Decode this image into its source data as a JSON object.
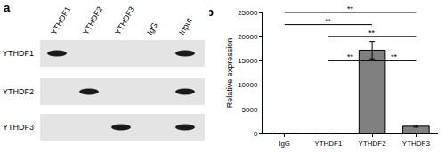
{
  "panel_a": {
    "label": "a",
    "lanes": [
      "YTHDF1",
      "YTHDF2",
      "YTHDF3",
      "IgG",
      "Input"
    ],
    "rows": [
      {
        "label": "YTHDF1",
        "bands": [
          "YTHDF1",
          "Input"
        ]
      },
      {
        "label": "YTHDF2",
        "bands": [
          "YTHDF2",
          "Input"
        ]
      },
      {
        "label": "YTHDF3",
        "bands": [
          "YTHDF3",
          "Input"
        ]
      }
    ]
  },
  "chart_data": {
    "label": "b",
    "type": "bar",
    "y_label": "Relative expression",
    "categories": [
      "IgG",
      "YTHDF1",
      "YTHDF2",
      "YTHDF3"
    ],
    "values": [
      0,
      0,
      17200,
      1500
    ],
    "errors": [
      0,
      0,
      1800,
      200
    ],
    "color": "#808080",
    "ylim": [
      0,
      25000
    ],
    "yticks": [
      0,
      5000,
      10000,
      15000,
      20000,
      25000
    ],
    "grid": false,
    "comparisons": [
      {
        "from": "IgG",
        "to": "YTHDF3",
        "y": 25000,
        "label": "**"
      },
      {
        "from": "IgG",
        "to": "YTHDF2",
        "y": 22500,
        "label": "**"
      },
      {
        "from": "YTHDF1",
        "to": "YTHDF3",
        "y": 20000,
        "label": "**"
      },
      {
        "from": "YTHDF1",
        "to": "YTHDF2",
        "y": 15000,
        "label": "**"
      },
      {
        "from": "YTHDF2",
        "to": "YTHDF3",
        "y": 15000,
        "label": "**"
      }
    ]
  }
}
